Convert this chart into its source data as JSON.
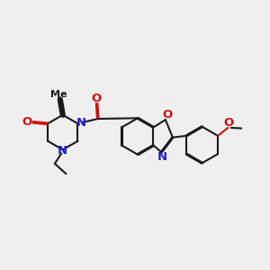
{
  "bg_color": "#efefef",
  "bond_color": "#1a1a1a",
  "n_color": "#2020cc",
  "o_color": "#cc1111",
  "lw": 1.5,
  "fs": 9.0,
  "xlim": [
    0,
    10
  ],
  "ylim": [
    2,
    8
  ]
}
